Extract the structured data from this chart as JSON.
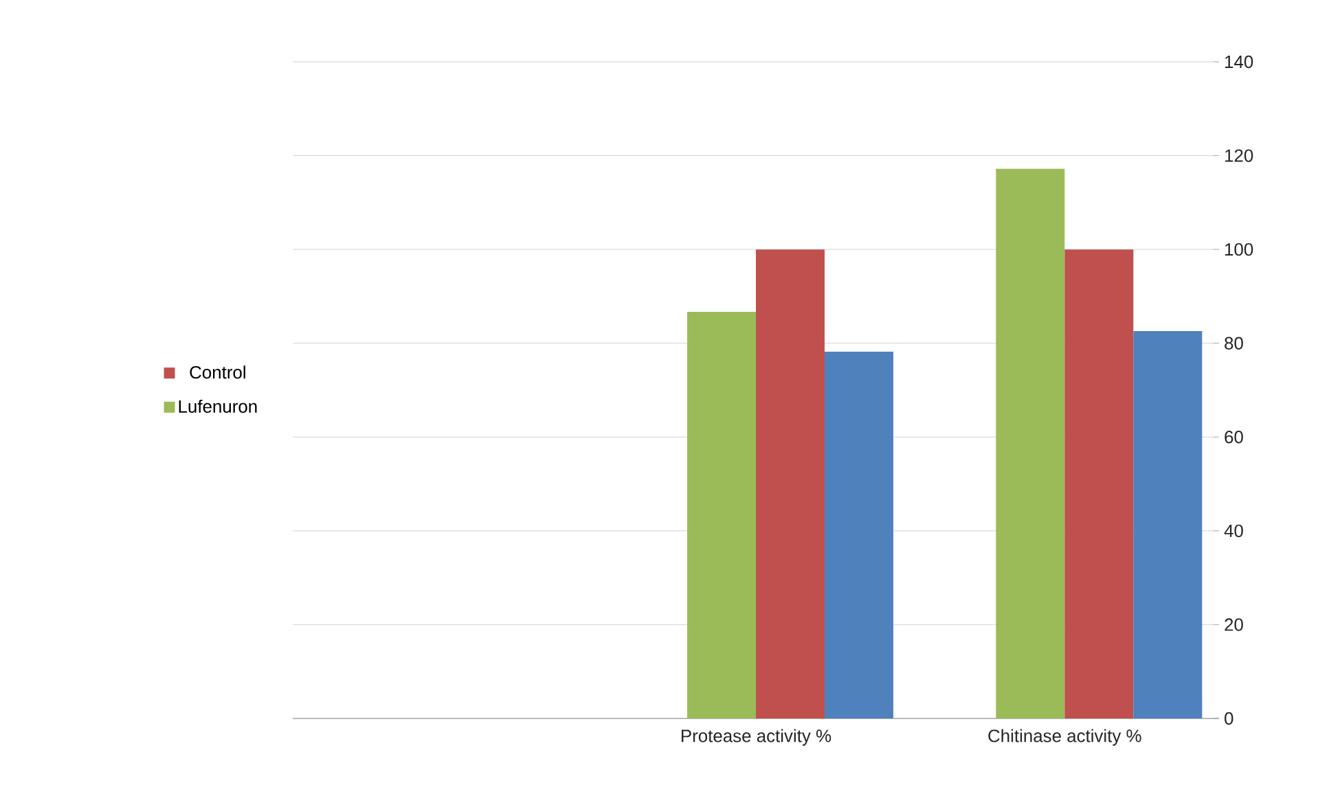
{
  "chart_data": {
    "type": "bar",
    "categories": [
      null,
      "Protease activity %",
      "Chitinase activity %"
    ],
    "series": [
      {
        "name": "Lufenuron",
        "color": "#9bbb59",
        "values": [
          null,
          86.7,
          117.2
        ]
      },
      {
        "name": "Control",
        "color": "#c0504d",
        "values": [
          null,
          100,
          100
        ]
      },
      {
        "color": "#4f81bd",
        "values": [
          null,
          78.2,
          82.6
        ]
      }
    ],
    "ylim": [
      0,
      140
    ],
    "yticks": [
      0,
      20,
      40,
      60,
      80,
      100,
      120,
      140
    ],
    "grid": "y",
    "legend": "left"
  }
}
